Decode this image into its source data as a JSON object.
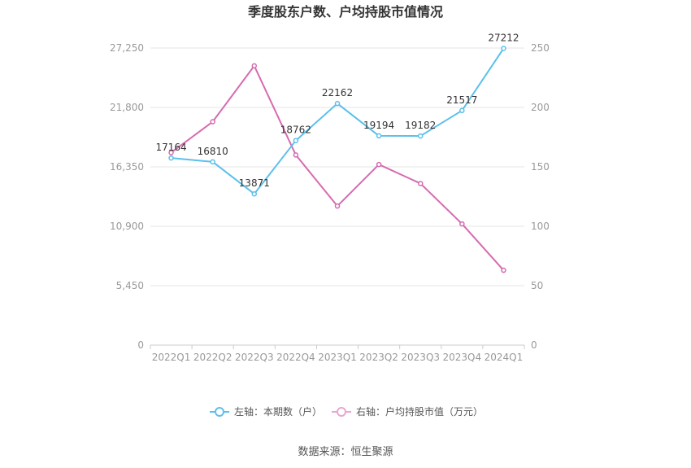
{
  "chart_data": {
    "type": "line",
    "title": "季度股东户数、户均持股市值情况",
    "categories": [
      "2022Q1",
      "2022Q2",
      "2022Q3",
      "2022Q4",
      "2023Q1",
      "2023Q2",
      "2023Q3",
      "2023Q4",
      "2024Q1"
    ],
    "series": [
      {
        "name": "左轴：本期数（户）",
        "axis": "left",
        "color": "#5bc0eb",
        "values": [
          17164,
          16810,
          13871,
          18762,
          22162,
          19194,
          19182,
          21517,
          27212
        ],
        "labels": [
          "17164",
          "16810",
          "13871",
          "18762",
          "22162",
          "19194",
          "19182",
          "21517",
          "27212"
        ]
      },
      {
        "name": "右轴：户均持股市值（万元）",
        "axis": "right",
        "color": "#d66bb0",
        "values": [
          162,
          188,
          235,
          160,
          117,
          152,
          136,
          102,
          63
        ]
      }
    ],
    "left_axis": {
      "min": 0,
      "max": 27250,
      "ticks": [
        "0",
        "5,450",
        "10,900",
        "16,350",
        "21,800",
        "27,250"
      ]
    },
    "right_axis": {
      "min": 0,
      "max": 250,
      "ticks": [
        "0",
        "50",
        "100",
        "150",
        "200",
        "250"
      ]
    },
    "grid": true,
    "legend_position": "bottom"
  },
  "source_text": "数据来源：恒生聚源"
}
